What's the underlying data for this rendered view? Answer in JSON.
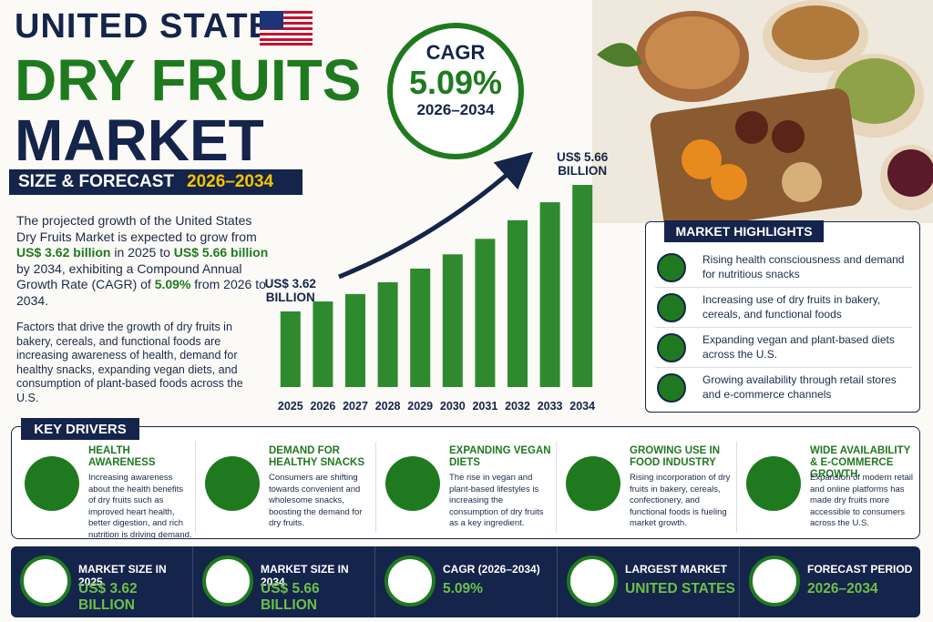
{
  "header": {
    "title_line1": "UNITED STATES",
    "title_line2": "DRY FRUITS",
    "title_line3": "MARKET",
    "subtitle": "SIZE & FORECAST",
    "subtitle_years": "2026–2034"
  },
  "cagr": {
    "label": "CAGR",
    "value": "5.09%",
    "period": "2026–2034"
  },
  "intro": [
    "The projected growth of the United States Dry Fruits Market is expected to grow from ",
    "US$ 3.62 billion",
    " in 2025 to ",
    "US$ 5.66 billion",
    " by 2034, exhibiting a Compound Annual Growth Rate (CAGR) of ",
    "5.09%",
    " from 2026 to 2034."
  ],
  "factors": "Factors that drive the growth of dry fruits in bakery, cereals, and functional foods are increasing awareness of health, demand for healthy snacks, expanding vegan diets, and consumption of plant-based foods across the U.S.",
  "chart_data": {
    "type": "bar",
    "categories": [
      "2025",
      "2026",
      "2027",
      "2028",
      "2029",
      "2030",
      "2031",
      "2032",
      "2033",
      "2034"
    ],
    "values": [
      3.62,
      3.78,
      3.9,
      4.09,
      4.31,
      4.54,
      4.79,
      5.09,
      5.38,
      5.66
    ],
    "value_labels": [
      "US$ 3.62 BILLION",
      null,
      null,
      null,
      null,
      null,
      null,
      null,
      null,
      "US$ 5.66 BILLION"
    ],
    "color": "#2f8a2f",
    "ylim": [
      2.4,
      5.8
    ]
  },
  "highlights": {
    "title": "MARKET HIGHLIGHTS",
    "items": [
      "Rising health consciousness and demand for nutritious snacks",
      "Increasing use of dry fruits in bakery, cereals, and functional foods",
      "Expanding vegan and plant-based diets across the U.S.",
      "Growing availability through retail stores and e-commerce channels"
    ]
  },
  "key_drivers": {
    "title": "KEY DRIVERS",
    "items": [
      {
        "title": "HEALTH AWARENESS",
        "text": "Increasing awareness about the health benefits of dry fruits such as improved heart health, better digestion, and rich nutrition is driving demand."
      },
      {
        "title": "DEMAND FOR HEALTHY SNACKS",
        "text": "Consumers are shifting towards convenient and wholesome snacks, boosting the demand for dry fruits."
      },
      {
        "title": "EXPANDING VEGAN DIETS",
        "text": "The rise in vegan and plant-based lifestyles is increasing the consumption of dry fruits as a key ingredient."
      },
      {
        "title": "GROWING USE IN FOOD INDUSTRY",
        "text": "Rising incorporation of dry fruits in bakery, cereals, confectionery, and functional foods is fueling market growth."
      },
      {
        "title": "WIDE AVAILABILITY & E-COMMERCE GROWTH",
        "text": "Expansion of modern retail and online platforms has made dry fruits more accessible to consumers across the U.S."
      }
    ]
  },
  "stats": [
    {
      "label": "MARKET SIZE IN 2025",
      "value": "US$ 3.62 BILLION"
    },
    {
      "label": "MARKET SIZE IN 2034",
      "value": "US$ 5.66 BILLION"
    },
    {
      "label": "CAGR (2026–2034)",
      "value": "5.09%"
    },
    {
      "label": "LARGEST MARKET",
      "value": "UNITED STATES"
    },
    {
      "label": "FORECAST PERIOD",
      "value": "2026–2034"
    }
  ]
}
